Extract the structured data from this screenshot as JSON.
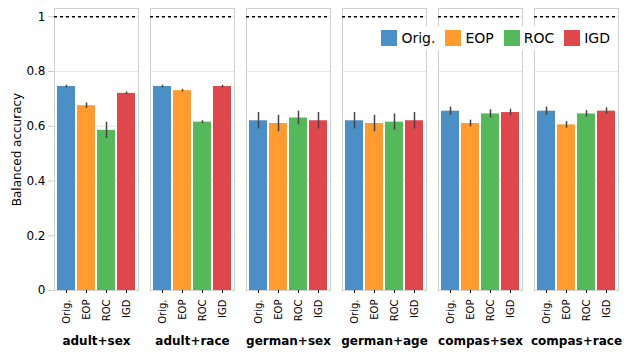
{
  "chart_data": {
    "type": "bar",
    "ylabel": "Balanced accuracy",
    "categories": [
      "adult+sex",
      "adult+race",
      "german+sex",
      "german+age",
      "compas+sex",
      "compas+race"
    ],
    "series": [
      {
        "name": "Orig.",
        "color": "#4a8fc6",
        "values": [
          0.745,
          0.745,
          0.62,
          0.62,
          0.655,
          0.655
        ],
        "errors": [
          0.005,
          0.005,
          0.03,
          0.03,
          0.015,
          0.015
        ]
      },
      {
        "name": "EOP",
        "color": "#ff9b2f",
        "values": [
          0.675,
          0.73,
          0.61,
          0.61,
          0.61,
          0.605
        ],
        "errors": [
          0.01,
          0.005,
          0.03,
          0.03,
          0.012,
          0.012
        ]
      },
      {
        "name": "ROC",
        "color": "#55b85a",
        "values": [
          0.585,
          0.615,
          0.63,
          0.615,
          0.645,
          0.645
        ],
        "errors": [
          0.03,
          0.005,
          0.025,
          0.03,
          0.015,
          0.012
        ]
      },
      {
        "name": "IGD",
        "color": "#e0474c",
        "values": [
          0.72,
          0.745,
          0.62,
          0.62,
          0.65,
          0.655
        ],
        "errors": [
          0.005,
          0.005,
          0.03,
          0.03,
          0.012,
          0.012
        ]
      }
    ],
    "reference_line": 1,
    "ylim": [
      0,
      1.03
    ],
    "yticks": [
      0,
      0.2,
      0.4,
      0.6,
      0.8,
      1
    ],
    "grid": true,
    "legend": "top-right"
  }
}
